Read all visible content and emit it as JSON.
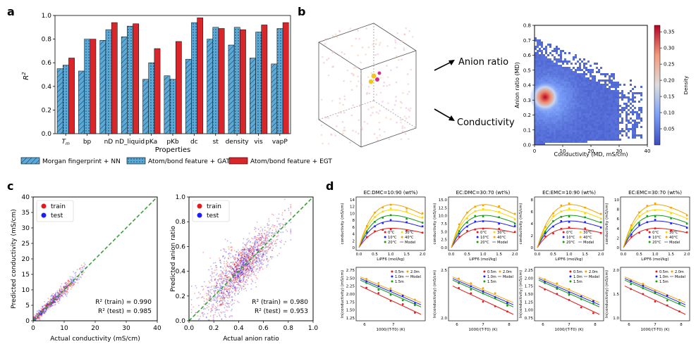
{
  "panels": {
    "a": "a",
    "b": "b",
    "c": "c",
    "d": "d"
  },
  "colors": {
    "morgan": "#5aa9d6",
    "gat": "#5aa9d6",
    "egt": "#d9262b",
    "train": "#e41a1c",
    "test": "#1c1cff",
    "diag": "#2ca02c"
  },
  "chart_data": [
    {
      "id": "a",
      "type": "bar",
      "categories": [
        "T_m",
        "bp",
        "nD",
        "nD_liquid",
        "pKa",
        "pKb",
        "dc",
        "st",
        "density",
        "vis",
        "vapP"
      ],
      "category_labels": [
        "Tm",
        "bp",
        "nD",
        "nD_liquid",
        "pKa",
        "pKb",
        "dc",
        "st",
        "density",
        "vis",
        "vapP"
      ],
      "series": [
        {
          "name": "Morgan fingerprint + NN",
          "values": [
            0.55,
            0.53,
            0.79,
            0.82,
            0.46,
            0.49,
            0.63,
            0.8,
            0.75,
            0.64,
            0.59
          ]
        },
        {
          "name": "Atom/bond feature + GAT",
          "values": [
            0.58,
            0.8,
            0.88,
            0.91,
            0.6,
            0.46,
            0.94,
            0.9,
            0.9,
            0.86,
            0.89
          ]
        },
        {
          "name": "Atom/bond feature + EGT",
          "values": [
            0.64,
            0.8,
            0.94,
            0.93,
            0.72,
            0.78,
            0.98,
            0.89,
            0.88,
            0.92,
            0.94
          ]
        }
      ],
      "ylabel": "R2",
      "xlabel": "Properties",
      "ylim": [
        0.0,
        1.0
      ],
      "yticks": [
        "0.0",
        "0.2",
        "0.4",
        "0.6",
        "0.8",
        "1.0"
      ]
    },
    {
      "id": "b",
      "type": "heatmap",
      "xlabel": "Conductivity (MD, mS/cm)",
      "ylabel": "Anion ratio (MD)",
      "xticks": [
        "0",
        "10",
        "20",
        "30",
        "40"
      ],
      "yticks": [
        "0.0",
        "0.1",
        "0.2",
        "0.3",
        "0.4",
        "0.5",
        "0.6",
        "0.7",
        "0.8"
      ],
      "colorbar_label": "Density",
      "colorbar_ticks": [
        "0.05",
        "0.10",
        "0.15",
        "0.20",
        "0.25",
        "0.30",
        "0.35"
      ],
      "xlim": [
        0,
        40
      ],
      "ylim": [
        0,
        0.8
      ],
      "peak": {
        "x": 5,
        "y": 0.3,
        "density": 0.37
      }
    },
    {
      "id": "c1",
      "type": "scatter",
      "xlabel": "Actual conductivity (mS/cm)",
      "ylabel": "Predicted conductivity (mS/cm)",
      "xticks": [
        "0",
        "10",
        "20",
        "30",
        "40"
      ],
      "yticks": [
        "0",
        "5",
        "10",
        "15",
        "20",
        "25",
        "30",
        "35",
        "40"
      ],
      "xlim": [
        0,
        40
      ],
      "ylim": [
        0,
        40
      ],
      "legend": [
        "train",
        "test"
      ],
      "annotations": [
        "R² (train) = 0.990",
        "R² (test) = 0.985"
      ]
    },
    {
      "id": "c2",
      "type": "scatter",
      "xlabel": "Actual anion ratio",
      "ylabel": "Predicted anion ratio",
      "xticks": [
        "0.0",
        "0.2",
        "0.4",
        "0.6",
        "0.8",
        "1.0"
      ],
      "yticks": [
        "0.0",
        "0.2",
        "0.4",
        "0.6",
        "0.8",
        "1.0"
      ],
      "xlim": [
        0,
        1
      ],
      "ylim": [
        0,
        1
      ],
      "legend": [
        "train",
        "test"
      ],
      "annotations": [
        "R² (train) = 0.980",
        "R² (test) = 0.953"
      ]
    }
  ],
  "panel_b_labels": {
    "anion": "Anion ratio",
    "cond": "Conductivity"
  },
  "panel_d": {
    "top_titles": [
      "EC:DMC=10:90 (wt%)",
      "EC:DMC=30:70 (wt%)",
      "EC:EMC=10:90 (wt%)",
      "EC:EMC=30:70 (wt%)"
    ],
    "top_xlabel": "LiPF6 (mol/kg)",
    "top_ylabel": "conductivity (mS/cm)",
    "top_xticks": [
      "0.0",
      "0.5",
      "1.0",
      "1.5",
      "2.0"
    ],
    "top_yticks": [
      [
        "0",
        "2",
        "4",
        "6",
        "8",
        "10",
        "12",
        "14"
      ],
      [
        "0.0",
        "2.5",
        "5.0",
        "7.5",
        "10.0",
        "12.5",
        "15.0"
      ],
      [
        "0",
        "2",
        "4",
        "6",
        "8"
      ],
      [
        "0",
        "2",
        "4",
        "6",
        "8",
        "10"
      ]
    ],
    "top_legend": [
      "0°C",
      "30°C",
      "10°C",
      "40°C",
      "20°C",
      "Model"
    ],
    "bot_xlabel": "1000/(T-T0) (K)",
    "bot_ylabel": "ln(conductivity) (mS/cm)",
    "bot_xticks": [
      [
        "6",
        "7"
      ],
      [
        "6",
        "7",
        "8"
      ],
      [
        "6",
        "7",
        "8"
      ],
      [
        "6",
        "7",
        "8"
      ]
    ],
    "bot_yticks": [
      [
        "1.25",
        "1.50",
        "1.75",
        "2.00",
        "2.25",
        "2.50",
        "2.75"
      ],
      [
        "2.0",
        "2.5"
      ],
      [
        "0.75",
        "1.00",
        "1.25",
        "1.50",
        "1.75",
        "2.00",
        "2.25"
      ],
      [
        "1.0",
        "1.5",
        "2.0"
      ]
    ],
    "bot_legend": [
      "0.5m",
      "2.0m",
      "1.0m",
      "Model",
      "1.5m"
    ]
  },
  "legend_a": [
    "Morgan fingerprint + NN",
    "Atom/bond feature + GAT",
    "Atom/bond feature + EGT"
  ]
}
